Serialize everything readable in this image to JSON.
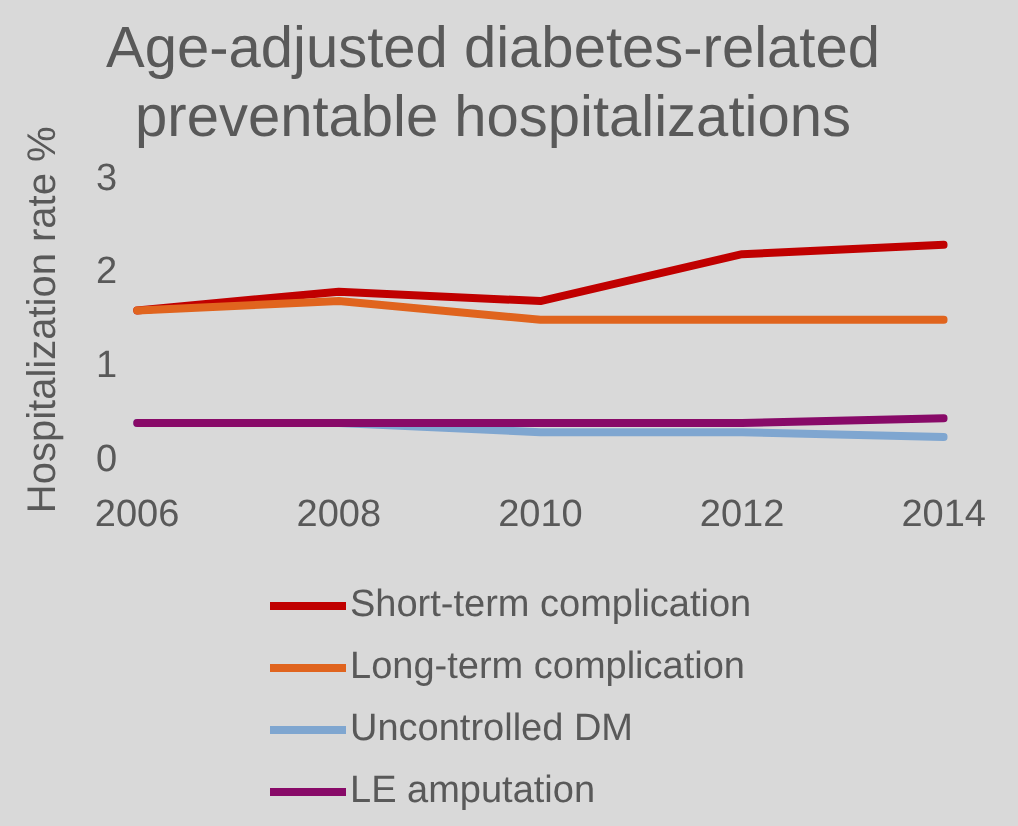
{
  "chart_data": {
    "type": "line",
    "title": "Age-adjusted diabetes-related preventable hospitalizations",
    "ylabel": "Hospitalization rate %",
    "categories": [
      "2006",
      "2008",
      "2010",
      "2012",
      "2014"
    ],
    "series": [
      {
        "name": "Short-term complication",
        "color": "#c00000",
        "values": [
          1.6,
          1.8,
          1.7,
          2.2,
          2.3
        ]
      },
      {
        "name": "Long-term complication",
        "color": "#e0641e",
        "values": [
          1.6,
          1.7,
          1.5,
          1.5,
          1.5
        ]
      },
      {
        "name": "Uncontrolled DM",
        "color": "#7fa6d0",
        "values": [
          0.4,
          0.4,
          0.3,
          0.3,
          0.25
        ]
      },
      {
        "name": "LE amputation",
        "color": "#880a68",
        "values": [
          0.4,
          0.4,
          0.4,
          0.4,
          0.45
        ]
      }
    ],
    "ylim": [
      0,
      3
    ],
    "yticks": [
      0,
      1,
      2,
      3
    ],
    "grid": false,
    "legend": "bottom",
    "marker": "none",
    "line_style": "solid"
  }
}
